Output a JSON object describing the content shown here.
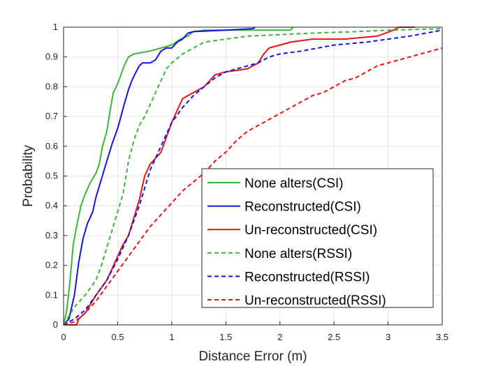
{
  "chart_data": {
    "type": "line",
    "title": "",
    "xlabel": "Distance Error (m)",
    "ylabel": "Probability",
    "xlim": [
      0,
      3.5
    ],
    "ylim": [
      0,
      1
    ],
    "x_ticks": [
      "0",
      "0.5",
      "1",
      "1.5",
      "2",
      "2.5",
      "3",
      "3.5"
    ],
    "y_ticks": [
      "0",
      "0.1",
      "0.2",
      "0.3",
      "0.4",
      "0.5",
      "0.6",
      "0.7",
      "0.8",
      "0.9",
      "1"
    ],
    "grid": true,
    "legend_position": "lower-right",
    "series": [
      {
        "name": "None alters(CSI)",
        "color": "#3cb43c",
        "style": "solid",
        "points": [
          [
            0,
            0
          ],
          [
            0.03,
            0.05
          ],
          [
            0.06,
            0.15
          ],
          [
            0.09,
            0.27
          ],
          [
            0.12,
            0.33
          ],
          [
            0.16,
            0.4
          ],
          [
            0.2,
            0.44
          ],
          [
            0.25,
            0.48
          ],
          [
            0.3,
            0.51
          ],
          [
            0.33,
            0.54
          ],
          [
            0.36,
            0.6
          ],
          [
            0.4,
            0.65
          ],
          [
            0.43,
            0.72
          ],
          [
            0.46,
            0.78
          ],
          [
            0.5,
            0.81
          ],
          [
            0.53,
            0.84
          ],
          [
            0.56,
            0.87
          ],
          [
            0.6,
            0.9
          ],
          [
            0.65,
            0.91
          ],
          [
            0.8,
            0.92
          ],
          [
            0.9,
            0.93
          ],
          [
            1.0,
            0.94
          ],
          [
            1.08,
            0.96
          ],
          [
            1.15,
            0.97
          ],
          [
            1.2,
            0.985
          ],
          [
            1.3,
            0.99
          ],
          [
            1.6,
            0.99
          ],
          [
            2.1,
            0.99
          ],
          [
            2.12,
            1.0
          ]
        ]
      },
      {
        "name": "Reconstructed(CSI)",
        "color": "#1414e6",
        "style": "solid",
        "points": [
          [
            0,
            0
          ],
          [
            0.05,
            0.02
          ],
          [
            0.1,
            0.1
          ],
          [
            0.14,
            0.21
          ],
          [
            0.18,
            0.29
          ],
          [
            0.22,
            0.34
          ],
          [
            0.27,
            0.38
          ],
          [
            0.3,
            0.43
          ],
          [
            0.35,
            0.49
          ],
          [
            0.4,
            0.55
          ],
          [
            0.45,
            0.61
          ],
          [
            0.5,
            0.66
          ],
          [
            0.53,
            0.7
          ],
          [
            0.56,
            0.74
          ],
          [
            0.6,
            0.79
          ],
          [
            0.63,
            0.82
          ],
          [
            0.67,
            0.85
          ],
          [
            0.7,
            0.87
          ],
          [
            0.73,
            0.88
          ],
          [
            0.8,
            0.88
          ],
          [
            0.85,
            0.89
          ],
          [
            0.9,
            0.92
          ],
          [
            0.95,
            0.93
          ],
          [
            1.0,
            0.93
          ],
          [
            1.05,
            0.95
          ],
          [
            1.1,
            0.96
          ],
          [
            1.15,
            0.98
          ],
          [
            1.2,
            0.985
          ],
          [
            1.5,
            0.99
          ],
          [
            1.75,
            0.995
          ],
          [
            1.77,
            1.0
          ]
        ]
      },
      {
        "name": "Un-reconstructed(CSI)",
        "color": "#e61414",
        "style": "solid",
        "points": [
          [
            0,
            0
          ],
          [
            0.12,
            0.0
          ],
          [
            0.14,
            0.02
          ],
          [
            0.2,
            0.04
          ],
          [
            0.3,
            0.1
          ],
          [
            0.4,
            0.15
          ],
          [
            0.45,
            0.19
          ],
          [
            0.5,
            0.23
          ],
          [
            0.55,
            0.27
          ],
          [
            0.6,
            0.3
          ],
          [
            0.65,
            0.36
          ],
          [
            0.7,
            0.42
          ],
          [
            0.75,
            0.5
          ],
          [
            0.8,
            0.54
          ],
          [
            0.85,
            0.56
          ],
          [
            0.9,
            0.58
          ],
          [
            0.92,
            0.6
          ],
          [
            0.95,
            0.63
          ],
          [
            1.0,
            0.68
          ],
          [
            1.05,
            0.72
          ],
          [
            1.1,
            0.76
          ],
          [
            1.2,
            0.78
          ],
          [
            1.3,
            0.8
          ],
          [
            1.4,
            0.84
          ],
          [
            1.5,
            0.85
          ],
          [
            1.7,
            0.86
          ],
          [
            1.8,
            0.88
          ],
          [
            1.85,
            0.91
          ],
          [
            1.9,
            0.93
          ],
          [
            2.0,
            0.94
          ],
          [
            2.1,
            0.95
          ],
          [
            2.3,
            0.96
          ],
          [
            2.6,
            0.96
          ],
          [
            2.9,
            0.97
          ],
          [
            3.05,
            0.99
          ],
          [
            3.1,
            1.0
          ],
          [
            3.25,
            1.0
          ]
        ]
      },
      {
        "name": "None alters(RSSI)",
        "color": "#3cb43c",
        "style": "dashed",
        "points": [
          [
            0,
            0
          ],
          [
            0.05,
            0.03
          ],
          [
            0.1,
            0.06
          ],
          [
            0.2,
            0.1
          ],
          [
            0.3,
            0.15
          ],
          [
            0.35,
            0.2
          ],
          [
            0.4,
            0.26
          ],
          [
            0.45,
            0.32
          ],
          [
            0.5,
            0.38
          ],
          [
            0.55,
            0.44
          ],
          [
            0.6,
            0.55
          ],
          [
            0.65,
            0.62
          ],
          [
            0.7,
            0.67
          ],
          [
            0.75,
            0.7
          ],
          [
            0.8,
            0.74
          ],
          [
            0.85,
            0.78
          ],
          [
            0.9,
            0.82
          ],
          [
            0.95,
            0.86
          ],
          [
            1.0,
            0.88
          ],
          [
            1.1,
            0.91
          ],
          [
            1.2,
            0.93
          ],
          [
            1.3,
            0.95
          ],
          [
            1.5,
            0.96
          ],
          [
            1.7,
            0.97
          ],
          [
            2.0,
            0.975
          ],
          [
            2.3,
            0.98
          ],
          [
            2.7,
            0.985
          ],
          [
            3.0,
            0.99
          ],
          [
            3.5,
            0.995
          ]
        ]
      },
      {
        "name": "Reconstructed(RSSI)",
        "color": "#1414e6",
        "style": "dashed",
        "points": [
          [
            0,
            0
          ],
          [
            0.1,
            0.02
          ],
          [
            0.2,
            0.05
          ],
          [
            0.3,
            0.1
          ],
          [
            0.4,
            0.15
          ],
          [
            0.5,
            0.22
          ],
          [
            0.6,
            0.3
          ],
          [
            0.7,
            0.4
          ],
          [
            0.8,
            0.52
          ],
          [
            0.9,
            0.6
          ],
          [
            1.0,
            0.68
          ],
          [
            1.1,
            0.73
          ],
          [
            1.2,
            0.77
          ],
          [
            1.3,
            0.8
          ],
          [
            1.4,
            0.83
          ],
          [
            1.5,
            0.85
          ],
          [
            1.7,
            0.87
          ],
          [
            1.8,
            0.88
          ],
          [
            1.9,
            0.9
          ],
          [
            2.0,
            0.91
          ],
          [
            2.2,
            0.92
          ],
          [
            2.5,
            0.94
          ],
          [
            2.8,
            0.95
          ],
          [
            3.0,
            0.96
          ],
          [
            3.2,
            0.97
          ],
          [
            3.35,
            0.98
          ],
          [
            3.5,
            0.99
          ]
        ]
      },
      {
        "name": "Un-reconstructed(RSSI)",
        "color": "#e61414",
        "style": "dashed",
        "points": [
          [
            0,
            0
          ],
          [
            0.1,
            0.01
          ],
          [
            0.2,
            0.04
          ],
          [
            0.3,
            0.08
          ],
          [
            0.4,
            0.13
          ],
          [
            0.5,
            0.18
          ],
          [
            0.6,
            0.23
          ],
          [
            0.7,
            0.28
          ],
          [
            0.8,
            0.33
          ],
          [
            0.9,
            0.37
          ],
          [
            1.0,
            0.41
          ],
          [
            1.1,
            0.45
          ],
          [
            1.2,
            0.48
          ],
          [
            1.3,
            0.51
          ],
          [
            1.4,
            0.55
          ],
          [
            1.5,
            0.58
          ],
          [
            1.6,
            0.62
          ],
          [
            1.7,
            0.65
          ],
          [
            1.8,
            0.67
          ],
          [
            1.9,
            0.69
          ],
          [
            2.0,
            0.71
          ],
          [
            2.1,
            0.73
          ],
          [
            2.2,
            0.75
          ],
          [
            2.3,
            0.77
          ],
          [
            2.4,
            0.78
          ],
          [
            2.5,
            0.8
          ],
          [
            2.6,
            0.82
          ],
          [
            2.7,
            0.83
          ],
          [
            2.8,
            0.85
          ],
          [
            2.9,
            0.87
          ],
          [
            3.0,
            0.88
          ],
          [
            3.1,
            0.89
          ],
          [
            3.2,
            0.9
          ],
          [
            3.3,
            0.91
          ],
          [
            3.4,
            0.92
          ],
          [
            3.5,
            0.93
          ]
        ]
      }
    ]
  }
}
